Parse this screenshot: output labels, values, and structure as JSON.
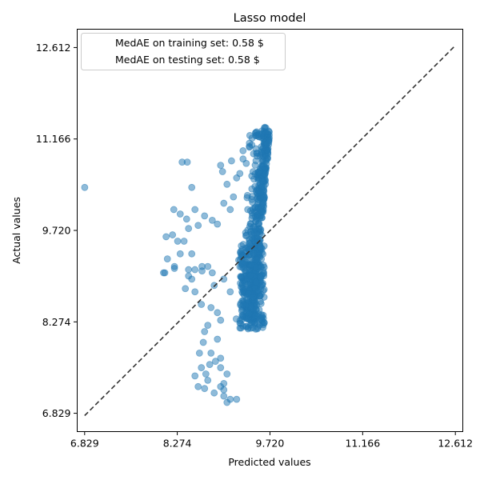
{
  "chart_data": {
    "type": "scatter",
    "title": "Lasso model",
    "xlabel": "Predicted values",
    "ylabel": "Actual values",
    "xlim": [
      6.713,
      12.728
    ],
    "ylim": [
      6.539,
      12.902
    ],
    "xticks": [
      6.829,
      8.274,
      9.72,
      11.166,
      12.612
    ],
    "yticks": [
      6.829,
      8.274,
      9.72,
      11.166,
      12.612
    ],
    "xtick_labels": [
      "6.829",
      "8.274",
      "9.720",
      "11.166",
      "12.612"
    ],
    "ytick_labels": [
      "6.829",
      "8.274",
      "9.720",
      "11.166",
      "12.612"
    ],
    "grid": false,
    "legend": {
      "placement": "upper-left",
      "entries": [
        "MedAE on training set: 0.58 $",
        "MedAE on testing set: 0.58 $"
      ]
    },
    "reference_line": {
      "from": [
        6.829,
        6.829
      ],
      "to": [
        12.612,
        12.612
      ],
      "style": "dashed",
      "color": "#333333"
    },
    "marker_color": "#1f77b4",
    "marker_alpha": 0.5,
    "series": [
      {
        "x": [
          6.83,
          8.35,
          8.43,
          8.5,
          8.22,
          8.55,
          8.32,
          8.42,
          8.6,
          8.45,
          8.1,
          8.2,
          8.28,
          8.38,
          8.32,
          8.5,
          8.12,
          8.08,
          8.06,
          8.23,
          8.23,
          8.45,
          8.45,
          8.55,
          8.5,
          8.66,
          8.75,
          8.66,
          8.82,
          8.4,
          8.55,
          8.65,
          8.8,
          8.9,
          8.95,
          8.75,
          8.7,
          8.68,
          8.9,
          8.95,
          8.65,
          8.8,
          8.87,
          8.62,
          8.75,
          8.55,
          8.6,
          8.7,
          8.78,
          8.72,
          8.85,
          8.95,
          9.0,
          9.05,
          8.95,
          9.0,
          9.05,
          8.82,
          8.9,
          8.7,
          9.0,
          9.1,
          9.05,
          9.2,
          9.25,
          9.15,
          8.98,
          8.95,
          9.12,
          9.3,
          9.35,
          9.3,
          9.4,
          9.55,
          9.5,
          9.0,
          9.1,
          9.2,
          8.85,
          9.0,
          9.1
        ],
        "y": [
          10.4,
          10.8,
          10.8,
          10.4,
          10.05,
          10.05,
          9.98,
          9.9,
          9.8,
          9.75,
          9.62,
          9.65,
          9.55,
          9.55,
          9.35,
          9.35,
          9.27,
          9.05,
          9.05,
          9.12,
          9.15,
          9.1,
          9.0,
          9.1,
          8.95,
          9.15,
          9.15,
          9.08,
          9.05,
          8.8,
          8.75,
          8.55,
          8.5,
          8.42,
          8.3,
          8.22,
          8.12,
          7.95,
          8.0,
          7.7,
          7.55,
          7.78,
          7.65,
          7.78,
          7.35,
          7.42,
          7.25,
          7.22,
          7.6,
          7.45,
          7.15,
          7.25,
          7.3,
          7.45,
          7.55,
          7.2,
          7.0,
          9.88,
          9.82,
          9.95,
          10.15,
          10.05,
          10.45,
          10.55,
          10.62,
          10.25,
          10.65,
          10.75,
          10.82,
          10.85,
          10.78,
          10.98,
          11.1,
          11.2,
          11.22,
          7.1,
          7.05,
          7.05,
          8.85,
          8.95,
          8.75
        ]
      }
    ]
  }
}
